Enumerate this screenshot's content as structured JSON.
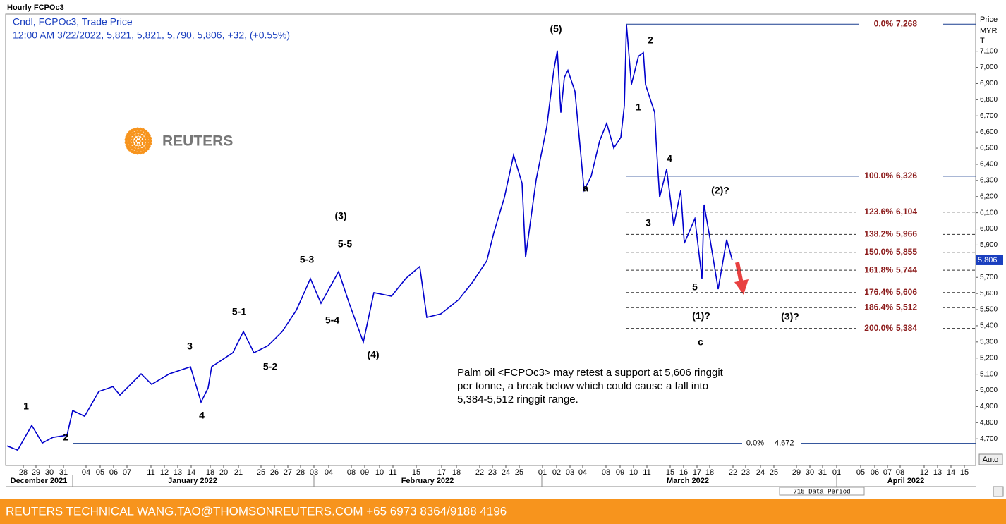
{
  "chart_data": {
    "type": "line",
    "title": "Hourly FCPOc3",
    "legend_lines": [
      "Cndl, FCPOc3, Trade Price",
      "12:00 AM 3/22/2022, 5,821, 5,821, 5,790, 5,806, +32, (+0.55%)"
    ],
    "axis_header": [
      "Price",
      "MYR",
      "T"
    ],
    "logo_text": "REUTERS",
    "x": [
      10,
      25,
      45,
      60,
      75,
      95,
      103,
      120,
      140,
      160,
      170,
      200,
      215,
      240,
      270,
      285,
      295,
      300,
      330,
      345,
      360,
      380,
      400,
      420,
      440,
      455,
      480,
      495,
      515,
      530,
      555,
      575,
      595,
      605,
      625,
      650,
      670,
      690,
      700,
      715,
      728,
      740,
      745,
      760,
      775,
      785,
      790,
      795,
      800,
      805,
      815,
      828,
      838,
      850,
      860,
      870,
      880,
      885,
      888,
      895,
      905,
      912,
      915,
      928,
      930,
      935,
      945,
      955,
      965,
      970,
      985,
      995,
      998,
      1005,
      1018,
      1030,
      1038
    ],
    "series": [
      {
        "name": "FCPOc3",
        "color": "#0000cc",
        "values": [
          4656,
          4630,
          4783,
          4674,
          4709,
          4722,
          4875,
          4840,
          4993,
          5023,
          4971,
          5102,
          5037,
          5102,
          5146,
          4927,
          5015,
          5146,
          5233,
          5364,
          5233,
          5277,
          5364,
          5496,
          5692,
          5539,
          5736,
          5539,
          5299,
          5605,
          5583,
          5692,
          5767,
          5452,
          5474,
          5561,
          5671,
          5802,
          5976,
          6195,
          6457,
          6283,
          5824,
          6304,
          6632,
          6982,
          7104,
          6720,
          6938,
          6982,
          6851,
          6239,
          6326,
          6545,
          6654,
          6501,
          6567,
          6763,
          7266,
          6894,
          7069,
          7091,
          6894,
          6720,
          6545,
          6195,
          6370,
          6020,
          6239,
          5911,
          6064,
          5692,
          6151,
          5976,
          5627,
          5933,
          5806
        ]
      }
    ],
    "last_price": 5806,
    "last_price_label": "5,806",
    "xlim": [
      8,
      1383
    ],
    "ylim": [
      4535,
      7330
    ],
    "yticks": [
      {
        "value": 4700,
        "label": "4,700"
      },
      {
        "value": 4800,
        "label": "4,800"
      },
      {
        "value": 4900,
        "label": "4,900"
      },
      {
        "value": 5000,
        "label": "5,000"
      },
      {
        "value": 5100,
        "label": "5,100"
      },
      {
        "value": 5200,
        "label": "5,200"
      },
      {
        "value": 5300,
        "label": "5,300"
      },
      {
        "value": 5400,
        "label": "5,400"
      },
      {
        "value": 5500,
        "label": "5,500"
      },
      {
        "value": 5600,
        "label": "5,600"
      },
      {
        "value": 5700,
        "label": "5,700"
      },
      {
        "value": 5800,
        "label": "5,800"
      },
      {
        "value": 5900,
        "label": "5,900"
      },
      {
        "value": 6000,
        "label": "6,000"
      },
      {
        "value": 6100,
        "label": "6,100"
      },
      {
        "value": 6200,
        "label": "6,200"
      },
      {
        "value": 6300,
        "label": "6,300"
      },
      {
        "value": 6400,
        "label": "6,400"
      },
      {
        "value": 6500,
        "label": "6,500"
      },
      {
        "value": 6600,
        "label": "6,600"
      },
      {
        "value": 6700,
        "label": "6,700"
      },
      {
        "value": 6800,
        "label": "6,800"
      },
      {
        "value": 6900,
        "label": "6,900"
      },
      {
        "value": 7000,
        "label": "7,000"
      },
      {
        "value": 7100,
        "label": "7,100"
      }
    ],
    "xticks": [
      {
        "value": 33,
        "label": "28"
      },
      {
        "value": 51,
        "label": "29"
      },
      {
        "value": 70,
        "label": "30"
      },
      {
        "value": 90,
        "label": "31"
      },
      {
        "value": 122,
        "label": "04"
      },
      {
        "value": 142,
        "label": "05"
      },
      {
        "value": 161,
        "label": "06"
      },
      {
        "value": 180,
        "label": "07"
      },
      {
        "value": 214,
        "label": "11"
      },
      {
        "value": 233,
        "label": "12"
      },
      {
        "value": 252,
        "label": "13"
      },
      {
        "value": 271,
        "label": "14"
      },
      {
        "value": 298,
        "label": "18"
      },
      {
        "value": 317,
        "label": "20"
      },
      {
        "value": 338,
        "label": "21"
      },
      {
        "value": 370,
        "label": "25"
      },
      {
        "value": 389,
        "label": "26"
      },
      {
        "value": 408,
        "label": "27"
      },
      {
        "value": 426,
        "label": "28"
      },
      {
        "value": 445,
        "label": "03"
      },
      {
        "value": 466,
        "label": "04"
      },
      {
        "value": 498,
        "label": "08"
      },
      {
        "value": 517,
        "label": "09"
      },
      {
        "value": 538,
        "label": "10"
      },
      {
        "value": 557,
        "label": "11"
      },
      {
        "value": 590,
        "label": "15"
      },
      {
        "value": 626,
        "label": "17"
      },
      {
        "value": 647,
        "label": "18"
      },
      {
        "value": 680,
        "label": "22"
      },
      {
        "value": 698,
        "label": "23"
      },
      {
        "value": 717,
        "label": "24"
      },
      {
        "value": 736,
        "label": "25"
      },
      {
        "value": 769,
        "label": "01"
      },
      {
        "value": 789,
        "label": "02"
      },
      {
        "value": 808,
        "label": "03"
      },
      {
        "value": 826,
        "label": "04"
      },
      {
        "value": 859,
        "label": "08"
      },
      {
        "value": 879,
        "label": "09"
      },
      {
        "value": 898,
        "label": "10"
      },
      {
        "value": 917,
        "label": "11"
      },
      {
        "value": 950,
        "label": "15"
      },
      {
        "value": 969,
        "label": "16"
      },
      {
        "value": 988,
        "label": "17"
      },
      {
        "value": 1006,
        "label": "18"
      },
      {
        "value": 1039,
        "label": "22"
      },
      {
        "value": 1057,
        "label": "23"
      },
      {
        "value": 1078,
        "label": "24"
      },
      {
        "value": 1097,
        "label": "25"
      },
      {
        "value": 1129,
        "label": "29"
      },
      {
        "value": 1148,
        "label": "30"
      },
      {
        "value": 1166,
        "label": "31"
      },
      {
        "value": 1186,
        "label": "01"
      },
      {
        "value": 1220,
        "label": "05"
      },
      {
        "value": 1240,
        "label": "06"
      },
      {
        "value": 1258,
        "label": "07"
      },
      {
        "value": 1276,
        "label": "08"
      },
      {
        "value": 1310,
        "label": "12"
      },
      {
        "value": 1329,
        "label": "13"
      },
      {
        "value": 1348,
        "label": "14"
      },
      {
        "value": 1367,
        "label": "15"
      }
    ],
    "months": [
      {
        "value": 55,
        "label": "December 2021"
      },
      {
        "value": 273,
        "label": "January 2022"
      },
      {
        "value": 606,
        "label": "February 2022"
      },
      {
        "value": 975,
        "label": "March 2022"
      },
      {
        "value": 1284,
        "label": "April 2022"
      }
    ],
    "fib_levels": [
      {
        "label": "0.0%",
        "value": 7268,
        "value_label": "7,268",
        "style": "solid"
      },
      {
        "label": "100.0%",
        "value": 6326,
        "value_label": "6,326",
        "style": "solid"
      },
      {
        "label": "123.6%",
        "value": 6104,
        "value_label": "6,104",
        "style": "dashed"
      },
      {
        "label": "138.2%",
        "value": 5966,
        "value_label": "5,966",
        "style": "dashed"
      },
      {
        "label": "150.0%",
        "value": 5855,
        "value_label": "5,855",
        "style": "dashed"
      },
      {
        "label": "161.8%",
        "value": 5744,
        "value_label": "5,744",
        "style": "dashed"
      },
      {
        "label": "176.4%",
        "value": 5606,
        "value_label": "5,606",
        "style": "dashed"
      },
      {
        "label": "186.4%",
        "value": 5512,
        "value_label": "5,512",
        "style": "dashed"
      },
      {
        "label": "200.0%",
        "value": 5384,
        "value_label": "5,384",
        "style": "dashed"
      }
    ],
    "base_level": {
      "label": "0.0%",
      "value": 4672,
      "value_label": "4,672"
    },
    "wave_labels": [
      "1",
      "2",
      "3",
      "4",
      "5-1",
      "5-2",
      "5-3",
      "(3)",
      "5-5",
      "5-4",
      "(4)",
      "(5)",
      "a",
      "2",
      "1",
      "4",
      "3",
      "(2)?",
      "5",
      "(1)?",
      "c",
      "(3)?"
    ],
    "annotation": [
      "Palm oil <FCPOc3> may retest a support at 5,606 ringgit",
      "per tonne, a break below which could cause a fall into",
      "5,384-5,512 ringgit range."
    ],
    "data_period": "715 Data Period",
    "auto_button": "Auto"
  },
  "footer": {
    "text": "REUTERS TECHNICAL  WANG.TAO@THOMSONREUTERS.COM  +65 6973 8364/9188 4196"
  }
}
